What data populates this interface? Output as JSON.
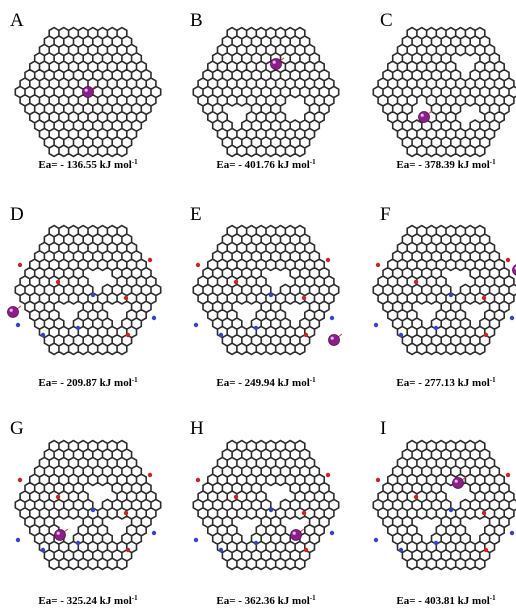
{
  "panels": [
    {
      "letter": "A",
      "energy": "Ea= - 136.55 kJ mol",
      "exp": "-1"
    },
    {
      "letter": "B",
      "energy": "Ea= - 401.76 kJ mol",
      "exp": "-1"
    },
    {
      "letter": "C",
      "energy": "Ea= - 378.39 kJ mol",
      "exp": "-1"
    },
    {
      "letter": "D",
      "energy": "Ea= - 209.87 kJ mol",
      "exp": "-1"
    },
    {
      "letter": "E",
      "energy": "Ea= - 249.94 kJ mol",
      "exp": "-1"
    },
    {
      "letter": "F",
      "energy": "Ea= - 277.13 kJ mol",
      "exp": "-1"
    },
    {
      "letter": "G",
      "energy": "Ea= - 325.24 kJ mol",
      "exp": "-1"
    },
    {
      "letter": "H",
      "energy": "Ea= - 362.36 kJ mol",
      "exp": "-1"
    },
    {
      "letter": "I",
      "energy": "Ea= - 403.81 kJ mol",
      "exp": "-1"
    }
  ]
}
